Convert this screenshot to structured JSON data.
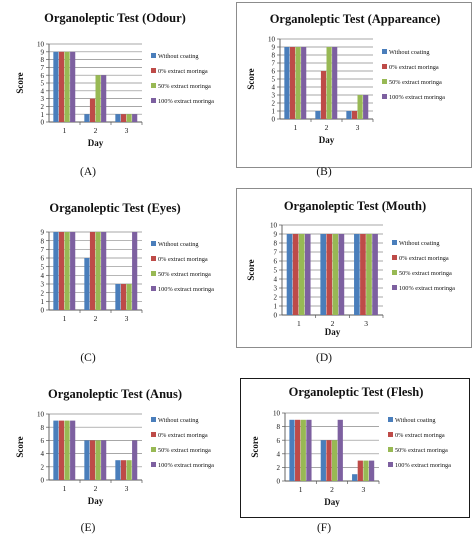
{
  "legend_labels": [
    "Without coating",
    "0% extract moringa",
    "50% extract moringa",
    "100% extract moringa"
  ],
  "colors": [
    "#4a7ebb",
    "#be4b48",
    "#98b954",
    "#7d60a0"
  ],
  "captions": [
    "(A)",
    "(B)",
    "(C)",
    "(D)",
    "(E)",
    "(F)"
  ],
  "chart_data": [
    {
      "type": "bar",
      "title": "Organoleptic Test (Odour)",
      "xlabel": "Day",
      "ylabel": "Score",
      "categories": [
        "1",
        "2",
        "3"
      ],
      "yticks": [
        "0",
        "1",
        "2",
        "3",
        "4",
        "5",
        "6",
        "7",
        "8",
        "9",
        "10"
      ],
      "ylim": [
        0,
        10
      ],
      "grid": true,
      "legend_position": "right",
      "series": [
        {
          "name": "Without coating",
          "values": [
            9,
            1,
            1
          ]
        },
        {
          "name": "0% extract moringa",
          "values": [
            9,
            3,
            1
          ]
        },
        {
          "name": "50% extract moringa",
          "values": [
            9,
            6,
            1
          ]
        },
        {
          "name": "100% extract moringa",
          "values": [
            9,
            6,
            1
          ]
        }
      ]
    },
    {
      "type": "bar",
      "title": "Organoleptic Test (Appareance)",
      "xlabel": "Day",
      "ylabel": "Score",
      "categories": [
        "1",
        "2",
        "3"
      ],
      "yticks": [
        "0",
        "1",
        "2",
        "3",
        "4",
        "5",
        "6",
        "7",
        "8",
        "9",
        "10"
      ],
      "ylim": [
        0,
        10
      ],
      "grid": true,
      "legend_position": "right",
      "series": [
        {
          "name": "Without coating",
          "values": [
            9,
            1,
            1
          ]
        },
        {
          "name": "0% extract moringa",
          "values": [
            9,
            6,
            1
          ]
        },
        {
          "name": "50% extract moringa",
          "values": [
            9,
            9,
            3
          ]
        },
        {
          "name": "100% extract moringa",
          "values": [
            9,
            9,
            3
          ]
        }
      ]
    },
    {
      "type": "bar",
      "title": "Organoleptic Test (Eyes)",
      "xlabel": "",
      "ylabel": "",
      "categories": [
        "1",
        "2",
        "3"
      ],
      "yticks": [
        "0",
        "1",
        "2",
        "3",
        "4",
        "5",
        "6",
        "7",
        "8",
        "9"
      ],
      "ylim": [
        0,
        9
      ],
      "grid": true,
      "legend_position": "right",
      "series": [
        {
          "name": "Without coating",
          "values": [
            9,
            6,
            3
          ]
        },
        {
          "name": "0% extract moringa",
          "values": [
            9,
            9,
            3
          ]
        },
        {
          "name": "50% extract moringa",
          "values": [
            9,
            9,
            3
          ]
        },
        {
          "name": "100% extract moringa",
          "values": [
            9,
            9,
            9
          ]
        }
      ]
    },
    {
      "type": "bar",
      "title": "Organoleptic Test (Mouth)",
      "xlabel": "Day",
      "ylabel": "Score",
      "categories": [
        "1",
        "2",
        "3"
      ],
      "yticks": [
        "0",
        "1",
        "2",
        "3",
        "4",
        "5",
        "6",
        "7",
        "8",
        "9",
        "10"
      ],
      "ylim": [
        0,
        10
      ],
      "grid": true,
      "legend_position": "right",
      "series": [
        {
          "name": "Without coating",
          "values": [
            9,
            9,
            9
          ]
        },
        {
          "name": "0% extract moringa",
          "values": [
            9,
            9,
            9
          ]
        },
        {
          "name": "50% extract moringa",
          "values": [
            9,
            9,
            9
          ]
        },
        {
          "name": "100% extract moringa",
          "values": [
            9,
            9,
            9
          ]
        }
      ]
    },
    {
      "type": "bar",
      "title": "Organoleptic Test (Anus)",
      "xlabel": "Day",
      "ylabel": "Score",
      "categories": [
        "1",
        "2",
        "3"
      ],
      "yticks": [
        "0",
        "2",
        "4",
        "6",
        "8",
        "10"
      ],
      "ylim": [
        0,
        10
      ],
      "grid": true,
      "legend_position": "right",
      "series": [
        {
          "name": "Without coating",
          "values": [
            9,
            6,
            3
          ]
        },
        {
          "name": "0% extract moringa",
          "values": [
            9,
            6,
            3
          ]
        },
        {
          "name": "50% extract moringa",
          "values": [
            9,
            6,
            3
          ]
        },
        {
          "name": "100% extract moringa",
          "values": [
            9,
            6,
            6
          ]
        }
      ]
    },
    {
      "type": "bar",
      "title": "Organoleptic Test (Flesh)",
      "xlabel": "Day",
      "ylabel": "Score",
      "categories": [
        "1",
        "2",
        "3"
      ],
      "yticks": [
        "0",
        "2",
        "4",
        "6",
        "8",
        "10"
      ],
      "ylim": [
        0,
        10
      ],
      "grid": true,
      "legend_position": "right",
      "series": [
        {
          "name": "Without coating",
          "values": [
            9,
            6,
            1
          ]
        },
        {
          "name": "0% extract moringa",
          "values": [
            9,
            6,
            3
          ]
        },
        {
          "name": "50% extract moringa",
          "values": [
            9,
            6,
            3
          ]
        },
        {
          "name": "100% extract moringa",
          "values": [
            9,
            9,
            3
          ]
        }
      ]
    }
  ]
}
